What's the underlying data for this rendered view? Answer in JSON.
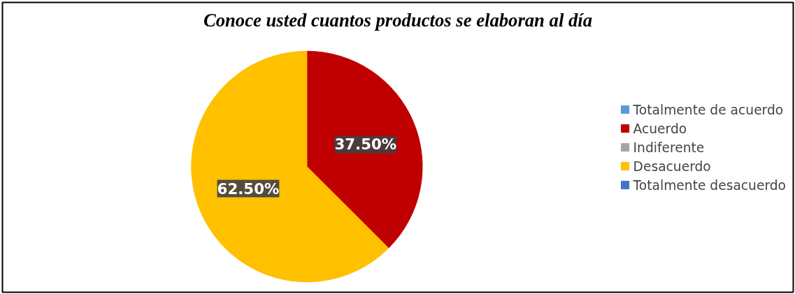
{
  "chart_data": {
    "type": "pie",
    "title": "Conoce usted cuantos productos se elaboran al día",
    "categories": [
      "Totalmente de acuerdo",
      "Acuerdo",
      "Indiferente",
      "Desacuerdo",
      "Totalmente desacuerdo"
    ],
    "values": [
      0,
      37.5,
      0,
      62.5,
      0
    ],
    "colors": [
      "#5b9bd5",
      "#c00000",
      "#a5a5a5",
      "#ffc000",
      "#4472c4"
    ],
    "value_labels": [
      null,
      "37.50%",
      null,
      "62.50%",
      null
    ],
    "legend": "right"
  }
}
